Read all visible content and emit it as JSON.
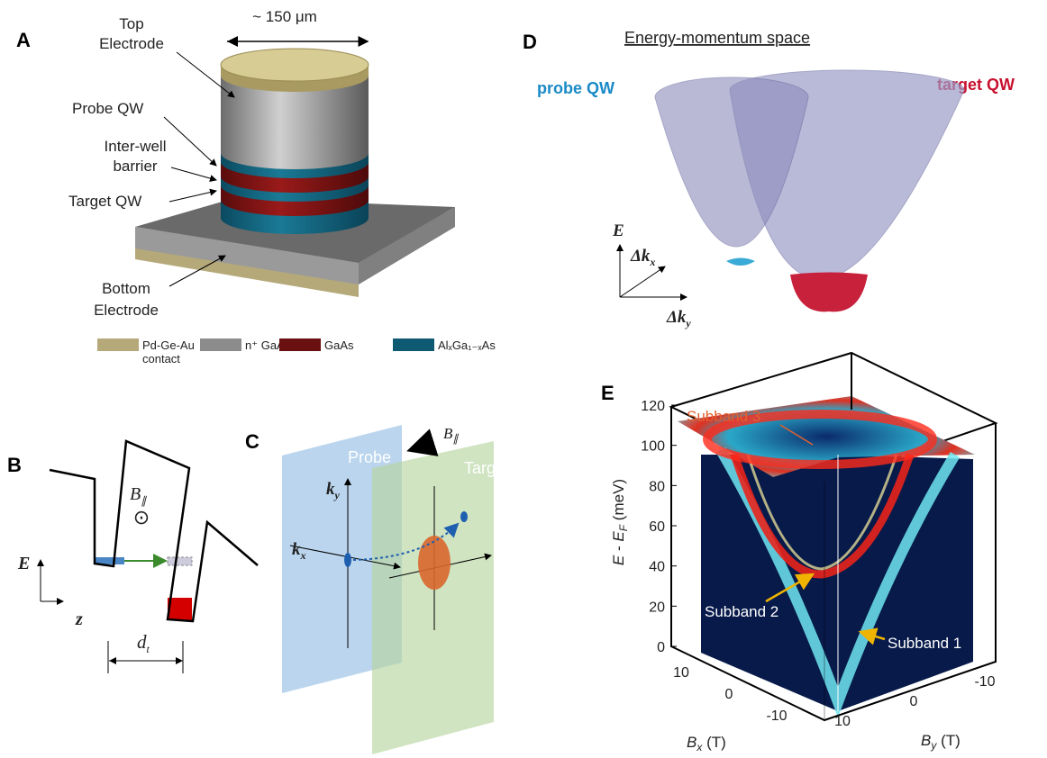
{
  "panel_a": {
    "label": "A",
    "scale": "~ 150 μm",
    "top_electrode": [
      "Top",
      "Electrode"
    ],
    "probe_qw": "Probe  QW",
    "barrier": [
      "Inter-well",
      "barrier"
    ],
    "target_qw": "Target  QW",
    "bottom_electrode": [
      "Bottom",
      "Electrode"
    ],
    "legend": [
      {
        "text": [
          "Pd-Ge-Au",
          "contact"
        ],
        "color": "#b5a97a"
      },
      {
        "text": [
          "n⁺ GaAs"
        ],
        "color": "#8c8c8c"
      },
      {
        "text": [
          "GaAs"
        ],
        "color": "#6b1010"
      },
      {
        "text": [
          "AlₓGa₁₋ₓAs"
        ],
        "color": "#0e5a72"
      }
    ]
  },
  "panel_b": {
    "label": "B",
    "field": [
      "B",
      "∥"
    ],
    "energy": "E",
    "position": "z",
    "distance": [
      "d",
      "t"
    ]
  },
  "panel_c": {
    "label": "C",
    "probe": "Probe",
    "target": "Target",
    "field": [
      "B",
      "∥"
    ],
    "ky": [
      "k",
      "y"
    ],
    "kx": [
      "k",
      "x"
    ]
  },
  "panel_d": {
    "label": "D",
    "title": "Energy-momentum space",
    "probe_qw": "probe QW",
    "target_qw": "target QW",
    "energy": "E",
    "dkx": [
      "Δk",
      "x"
    ],
    "dky": [
      "Δk",
      "y"
    ]
  },
  "panel_e": {
    "label": "E",
    "subband_3": "Subband 3",
    "subband_2": "Subband 2",
    "subband_1": "Subband 1",
    "y_axis": {
      "label": [
        "E",
        " - ",
        "E",
        "F",
        " (meV)"
      ],
      "ticks": [
        0,
        20,
        40,
        60,
        80,
        100,
        120
      ]
    },
    "bx_axis": {
      "label": [
        "B",
        "x",
        " (T)"
      ],
      "ticks": [
        10,
        0,
        -10
      ]
    },
    "by_axis": {
      "label": [
        "B",
        "y",
        " (T)"
      ],
      "ticks": [
        10,
        0,
        -10
      ]
    }
  }
}
